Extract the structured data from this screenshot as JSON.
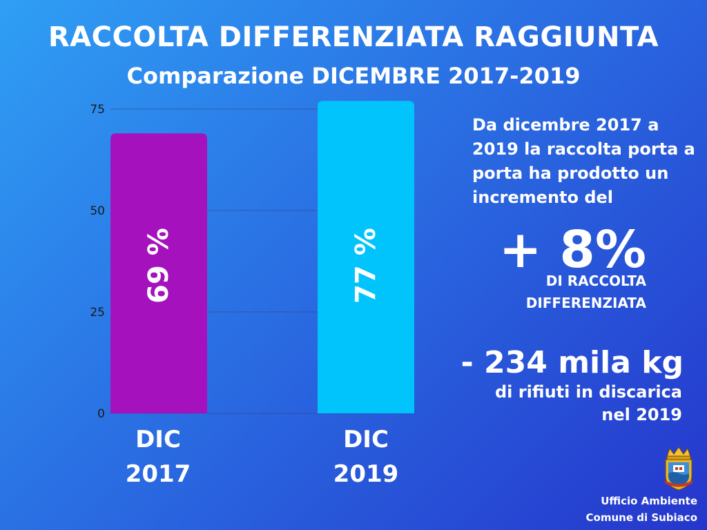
{
  "header": {
    "title": "RACCOLTA DIFFERENZIATA RAGGIUNTA",
    "subtitle": "Comparazione DICEMBRE 2017-2019"
  },
  "chart_data": {
    "type": "bar",
    "categories": [
      "DIC 2017",
      "DIC 2019"
    ],
    "category_lines": [
      [
        "DIC",
        "2017"
      ],
      [
        "DIC",
        "2019"
      ]
    ],
    "values": [
      69,
      77
    ],
    "data_labels": [
      "69 %",
      "77 %"
    ],
    "bar_colors": [
      "#a512bd",
      "#00c4fb"
    ],
    "ylim": [
      0,
      75
    ],
    "yticks": [
      0,
      25,
      50,
      75
    ],
    "grid": true,
    "title": "",
    "xlabel": "",
    "ylabel": ""
  },
  "summary": {
    "description": "Da dicembre 2017 a 2019 la raccolta porta a porta ha prodotto un incremento del",
    "increase_value": "+ 8%",
    "increase_caption": "DI RACCOLTA DIFFERENZIATA",
    "waste_value": "- 234 mila kg",
    "waste_caption": "di rifiuti in discarica nel 2019"
  },
  "footer": {
    "crest_icon": "coat-of-arms-icon",
    "office_line1": "Ufficio Ambiente",
    "office_line2": "Comune di Subiaco"
  },
  "colors": {
    "background_start": "#2f9ff4",
    "background_end": "#2536cc",
    "text": "#ffffff"
  }
}
